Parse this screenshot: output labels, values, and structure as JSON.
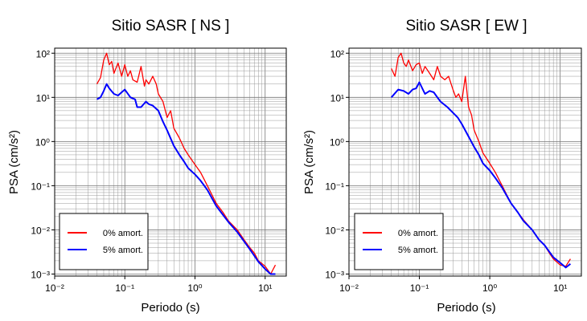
{
  "chart_data": [
    {
      "type": "line",
      "title": "Sitio SASR [ NS ]",
      "xlabel": "Periodo (s)",
      "ylabel": "PSA (cm/s²)",
      "xscale": "log",
      "yscale": "log",
      "xlim": [
        0.01,
        20
      ],
      "ylim": [
        0.0009,
        130
      ],
      "grid": true,
      "legend_position": "bottom-left",
      "series": [
        {
          "name": "0% amort.",
          "color": "#ff0000",
          "x": [
            0.04,
            0.045,
            0.05,
            0.055,
            0.06,
            0.065,
            0.07,
            0.08,
            0.09,
            0.1,
            0.11,
            0.12,
            0.13,
            0.15,
            0.17,
            0.19,
            0.2,
            0.22,
            0.25,
            0.28,
            0.3,
            0.35,
            0.4,
            0.45,
            0.5,
            0.6,
            0.7,
            0.8,
            1.0,
            1.2,
            1.5,
            2.0,
            2.5,
            3.0,
            4.0,
            5.0,
            6.0,
            7.0,
            8.0,
            10.0,
            12.0,
            14.0
          ],
          "y": [
            20,
            28,
            70,
            100,
            55,
            65,
            35,
            60,
            30,
            55,
            30,
            40,
            25,
            22,
            50,
            18,
            25,
            20,
            30,
            20,
            12,
            8,
            3.5,
            5,
            2,
            1.2,
            0.7,
            0.5,
            0.3,
            0.2,
            0.1,
            0.04,
            0.025,
            0.016,
            0.01,
            0.006,
            0.004,
            0.003,
            0.002,
            0.0015,
            0.001,
            0.0016
          ]
        },
        {
          "name": "5% amort.",
          "color": "#0000ff",
          "x": [
            0.04,
            0.045,
            0.05,
            0.055,
            0.06,
            0.07,
            0.08,
            0.09,
            0.1,
            0.12,
            0.14,
            0.15,
            0.17,
            0.2,
            0.22,
            0.25,
            0.3,
            0.35,
            0.4,
            0.5,
            0.6,
            0.7,
            0.8,
            1.0,
            1.2,
            1.5,
            2.0,
            2.5,
            3.0,
            4.0,
            5.0,
            6.0,
            7.0,
            8.0,
            10.0,
            12.0,
            14.0
          ],
          "y": [
            9,
            10,
            14,
            20,
            16,
            12,
            11,
            13,
            15,
            10,
            9,
            6,
            6,
            8,
            7,
            6.5,
            5,
            2.8,
            1.8,
            0.8,
            0.5,
            0.35,
            0.25,
            0.18,
            0.13,
            0.08,
            0.035,
            0.022,
            0.015,
            0.009,
            0.0055,
            0.0037,
            0.0026,
            0.0019,
            0.0013,
            0.001,
            0.001
          ]
        }
      ]
    },
    {
      "type": "line",
      "title": "Sitio SASR [ EW ]",
      "xlabel": "Periodo (s)",
      "ylabel": "PSA (cm/s²)",
      "xscale": "log",
      "yscale": "log",
      "xlim": [
        0.01,
        20
      ],
      "ylim": [
        0.0009,
        130
      ],
      "grid": true,
      "legend_position": "bottom-left",
      "series": [
        {
          "name": "0% amort.",
          "color": "#ff0000",
          "x": [
            0.04,
            0.045,
            0.05,
            0.055,
            0.06,
            0.065,
            0.07,
            0.08,
            0.09,
            0.1,
            0.11,
            0.12,
            0.14,
            0.16,
            0.18,
            0.2,
            0.23,
            0.26,
            0.3,
            0.33,
            0.36,
            0.4,
            0.45,
            0.5,
            0.55,
            0.6,
            0.7,
            0.8,
            1.0,
            1.2,
            1.5,
            2.0,
            2.5,
            3.0,
            4.0,
            5.0,
            6.0,
            7.0,
            8.0,
            10.0,
            12.0,
            14.0
          ],
          "y": [
            45,
            30,
            80,
            100,
            60,
            50,
            70,
            40,
            55,
            60,
            35,
            50,
            35,
            25,
            50,
            30,
            25,
            30,
            15,
            10,
            12,
            8,
            30,
            6,
            4,
            1.8,
            1.0,
            0.55,
            0.32,
            0.2,
            0.1,
            0.04,
            0.025,
            0.017,
            0.01,
            0.006,
            0.0045,
            0.003,
            0.0022,
            0.0016,
            0.0015,
            0.0022
          ]
        },
        {
          "name": "5% amort.",
          "color": "#0000ff",
          "x": [
            0.04,
            0.05,
            0.06,
            0.07,
            0.08,
            0.09,
            0.1,
            0.12,
            0.14,
            0.16,
            0.18,
            0.2,
            0.25,
            0.3,
            0.35,
            0.4,
            0.5,
            0.6,
            0.7,
            0.8,
            1.0,
            1.2,
            1.5,
            2.0,
            2.5,
            3.0,
            4.0,
            5.0,
            6.0,
            7.0,
            8.0,
            10.0,
            12.0,
            14.0
          ],
          "y": [
            10,
            15,
            14,
            12,
            15,
            16,
            22,
            12,
            14,
            13,
            10,
            8,
            6,
            4.5,
            3.5,
            2.5,
            1.3,
            0.75,
            0.5,
            0.32,
            0.22,
            0.15,
            0.09,
            0.04,
            0.025,
            0.016,
            0.01,
            0.006,
            0.0045,
            0.0032,
            0.0024,
            0.0018,
            0.0014,
            0.0017
          ]
        }
      ]
    }
  ]
}
